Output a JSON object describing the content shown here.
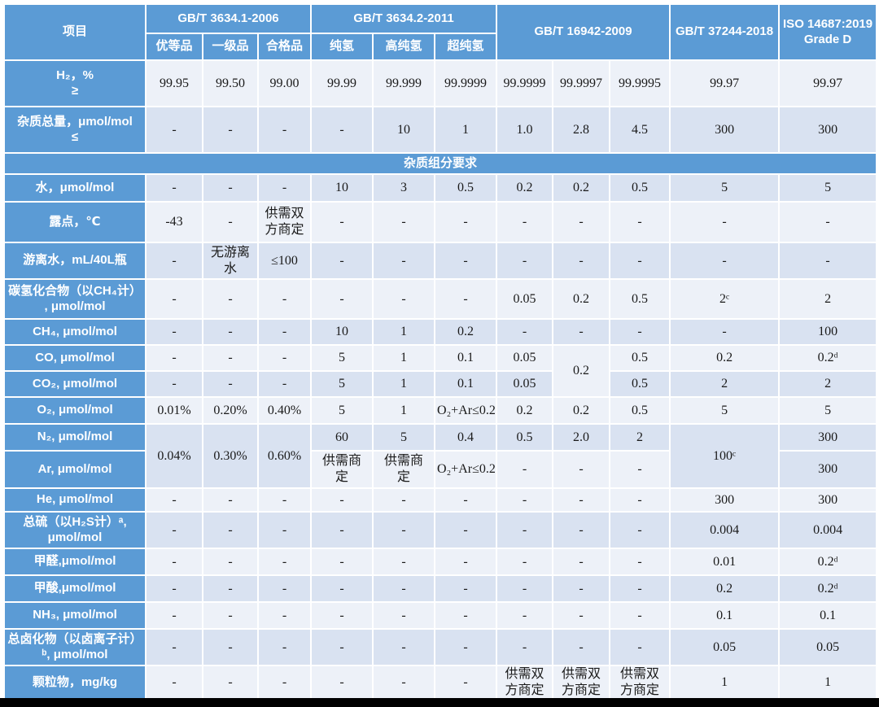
{
  "colors": {
    "header_blue": "#5B9BD5",
    "row_light": "#EDF1F8",
    "row_dark": "#D9E2F1",
    "header_text": "#ffffff",
    "cell_text": "#1a1a1a"
  },
  "table": {
    "columns_header": {
      "item": "项目",
      "groups": [
        {
          "label": "GB/T 3634.1-2006",
          "subs": [
            "优等品",
            "一级品",
            "合格品"
          ]
        },
        {
          "label": "GB/T 3634.2-2011",
          "subs": [
            "纯氢",
            "高纯氢",
            "超纯氢"
          ]
        },
        {
          "label": "GB/T 16942-2009",
          "span": 3
        },
        {
          "label": "GB/T 37244-2018",
          "span": 1
        },
        {
          "label": "ISO 14687:2019\nGrade D",
          "span": 1
        }
      ]
    },
    "rows": [
      {
        "label": "H₂，%\n≥",
        "shade": "light",
        "cells": [
          "99.95",
          "99.50",
          "99.00",
          "99.99",
          "99.999",
          "99.9999",
          "99.9999",
          "99.9997",
          "99.9995",
          "99.97",
          "99.97"
        ]
      },
      {
        "label": "杂质总量，μmol/mol\n≤",
        "shade": "dark",
        "cells": [
          "-",
          "-",
          "-",
          "-",
          "10",
          "1",
          "1.0",
          "2.8",
          "4.5",
          "300",
          "300"
        ]
      },
      {
        "type": "section",
        "label": "杂质组分要求"
      },
      {
        "label": "水，μmol/mol",
        "shade": "dark",
        "cells": [
          "-",
          "-",
          "-",
          "10",
          "3",
          "0.5",
          "0.2",
          "0.2",
          "0.5",
          "5",
          "5"
        ]
      },
      {
        "label": "露点，℃",
        "shade": "light",
        "cells": [
          "-43",
          "-",
          "供需双\n方商定",
          "-",
          "-",
          "-",
          "-",
          "-",
          "-",
          "-",
          "-"
        ]
      },
      {
        "label": "游离水，mL/40L瓶",
        "shade": "dark",
        "cells": [
          "-",
          "无游离\n水",
          "≤100",
          "-",
          "-",
          "-",
          "-",
          "-",
          "-",
          "-",
          "-"
        ]
      },
      {
        "label": "碳氢化合物（以CH₄计）\n, μmol/mol",
        "shade": "light",
        "cells": [
          "-",
          "-",
          "-",
          "-",
          "-",
          "-",
          "0.05",
          "0.2",
          "0.5",
          "2ᶜ",
          "2"
        ]
      },
      {
        "label": "CH₄, μmol/mol",
        "shade": "dark",
        "cells": [
          "-",
          "-",
          "-",
          "10",
          "1",
          "0.2",
          "-",
          "-",
          "-",
          "-",
          "100"
        ]
      },
      {
        "label": "CO, μmol/mol",
        "shade": "light",
        "cells": [
          "-",
          "-",
          "-",
          "5",
          "1",
          "0.1",
          "0.05",
          {
            "t": "0.2",
            "rs": 2
          },
          "0.5",
          "0.2",
          "0.2ᵈ"
        ]
      },
      {
        "label": "CO₂, μmol/mol",
        "shade": "dark",
        "cells": [
          "-",
          "-",
          "-",
          "5",
          "1",
          "0.1",
          "0.05",
          null,
          "0.5",
          "2",
          "2"
        ]
      },
      {
        "label": "O₂, μmol/mol",
        "shade": "light",
        "cells": [
          "0.01%",
          "0.20%",
          "0.40%",
          "5",
          "1",
          "O₂+Ar≤0.2",
          "0.2",
          "0.2",
          "0.5",
          "5",
          "5"
        ]
      },
      {
        "label": "N₂, μmol/mol",
        "shade": "dark",
        "cells": [
          {
            "t": "0.04%",
            "rs": 2
          },
          {
            "t": "0.30%",
            "rs": 2
          },
          {
            "t": "0.60%",
            "rs": 2
          },
          "60",
          "5",
          "0.4",
          "0.5",
          "2.0",
          "2",
          {
            "t": "100ᶜ",
            "rs": 2
          },
          "300"
        ]
      },
      {
        "label": "Ar, μmol/mol",
        "shade": "light",
        "cells": [
          null,
          null,
          null,
          "供需商\n定",
          "供需商\n定",
          "O₂+Ar≤0.2",
          "-",
          "-",
          "-",
          null,
          {
            "t": "300",
            "shade": "dark"
          }
        ]
      },
      {
        "label": "He, μmol/mol",
        "shade": "light",
        "cells": [
          "-",
          "-",
          "-",
          "-",
          "-",
          "-",
          "-",
          "-",
          "-",
          "300",
          "300"
        ]
      },
      {
        "label": "总硫（以H₂S计）ᵃ,\nμmol/mol",
        "shade": "dark",
        "cells": [
          "-",
          "-",
          "-",
          "-",
          "-",
          "-",
          "-",
          "-",
          "-",
          "0.004",
          "0.004"
        ]
      },
      {
        "label": "甲醛,μmol/mol",
        "shade": "light",
        "cells": [
          "-",
          "-",
          "-",
          "-",
          "-",
          "-",
          "-",
          "-",
          "-",
          "0.01",
          "0.2ᵈ"
        ]
      },
      {
        "label": "甲酸,μmol/mol",
        "shade": "dark",
        "cells": [
          "-",
          "-",
          "-",
          "-",
          "-",
          "-",
          "-",
          "-",
          "-",
          "0.2",
          "0.2ᵈ"
        ]
      },
      {
        "label": "NH₃, μmol/mol",
        "shade": "light",
        "cells": [
          "-",
          "-",
          "-",
          "-",
          "-",
          "-",
          "-",
          "-",
          "-",
          "0.1",
          "0.1"
        ]
      },
      {
        "label": "总卤化物（以卤离子计）\nᵇ, μmol/mol",
        "shade": "dark",
        "cells": [
          "-",
          "-",
          "-",
          "-",
          "-",
          "-",
          "-",
          "-",
          "-",
          "0.05",
          "0.05"
        ]
      },
      {
        "label": "颗粒物，mg/kg",
        "shade": "light",
        "cells": [
          "-",
          "-",
          "-",
          "-",
          "-",
          "-",
          "供需双\n方商定",
          "供需双\n方商定",
          "供需双\n方商定",
          "1",
          "1"
        ]
      }
    ]
  }
}
